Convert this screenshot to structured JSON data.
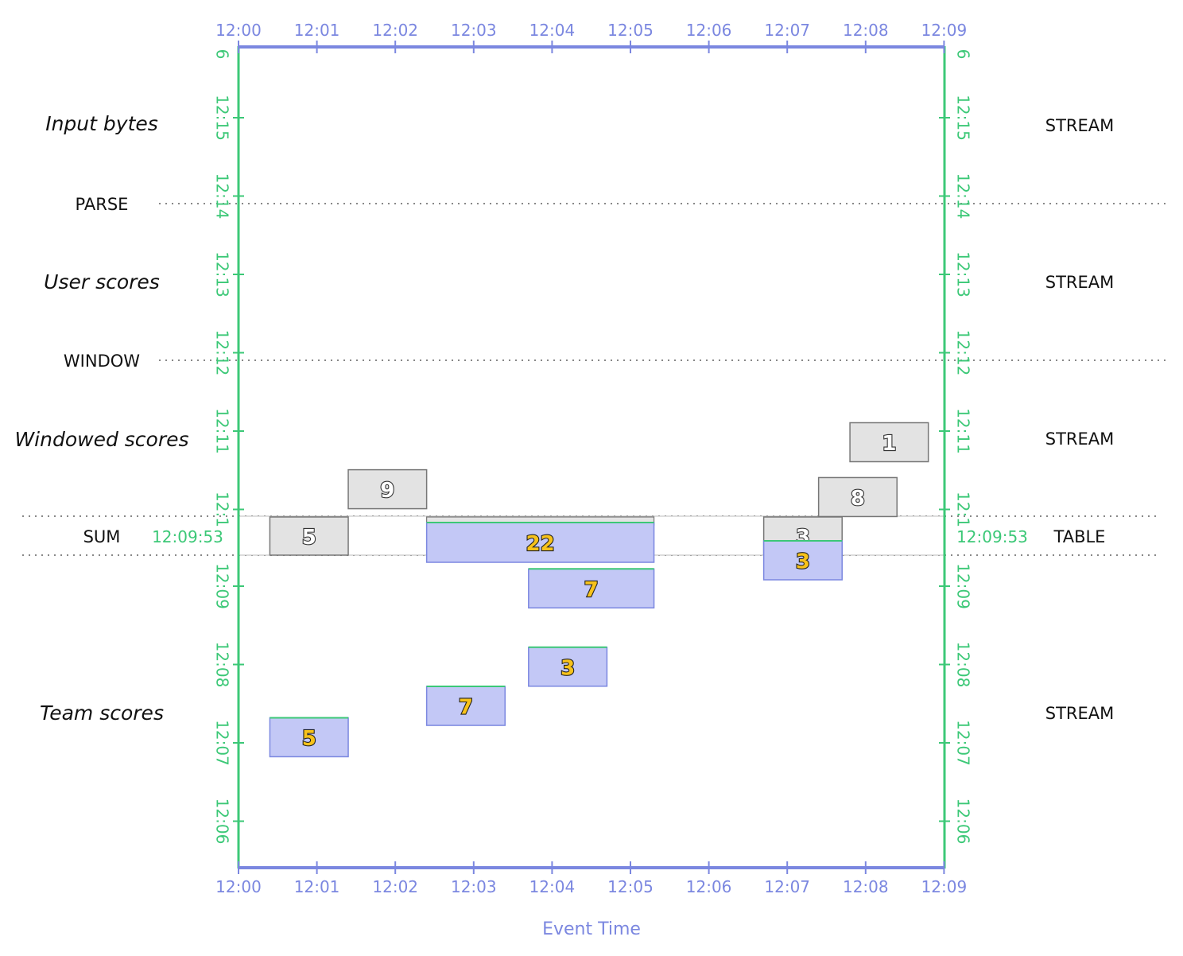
{
  "axis": {
    "x_label": "Event Time",
    "x_ticks": [
      "12:00",
      "12:01",
      "12:02",
      "12:03",
      "12:04",
      "12:05",
      "12:06",
      "12:07",
      "12:08",
      "12:09"
    ],
    "y_ticks_upper": [
      "12:15",
      "12:14",
      "12:13",
      "12:12",
      "12:11",
      "12:1"
    ],
    "y_top_partial": "6",
    "y_ticks_lower": [
      "12:09",
      "12:08",
      "12:07",
      "12:06"
    ]
  },
  "stages": {
    "input_bytes": "Input bytes",
    "parse": "PARSE",
    "user_scores": "User scores",
    "window": "WINDOW",
    "windowed_scores": "Windowed scores",
    "sum": "SUM",
    "team_scores": "Team scores"
  },
  "collection_kinds": {
    "input_bytes": "STREAM",
    "user_scores": "STREAM",
    "windowed_scores": "STREAM",
    "sum": "TABLE",
    "team_scores": "STREAM"
  },
  "watermark": "12:09:53",
  "colors": {
    "event_time_axis": "#7b87e0",
    "processing_time_axis": "#3cc877",
    "pending_box": "#e3e3e3",
    "result_box": "#c3c8f6",
    "value_gold": "#f7c21a"
  },
  "windowed_scores_pending": [
    {
      "value": "9",
      "window_start": "12:01.4",
      "window_end": "12:02.4",
      "processing_time": "12:10.4"
    },
    {
      "value": "1",
      "window_start": "12:07.8",
      "window_end": "12:08.8",
      "processing_time": "12:11.0"
    },
    {
      "value": "8",
      "window_start": "12:07.4",
      "window_end": "12:08.4",
      "processing_time": "12:10.3"
    }
  ],
  "table_state": [
    {
      "value": "5",
      "window_start": "12:00.4",
      "window_end": "12:01.4",
      "style": "pending"
    },
    {
      "value": "3",
      "window_start": "12:06.7",
      "window_end": "12:07.7",
      "style": "pending"
    }
  ],
  "table_results": [
    {
      "value": "22",
      "window_start": "12:02.4",
      "window_end": "12:05.3"
    },
    {
      "value": "3",
      "window_start": "12:06.7",
      "window_end": "12:07.7"
    }
  ],
  "team_scores_results": [
    {
      "value": "7",
      "window_start": "12:03.7",
      "window_end": "12:05.3",
      "processing_time": "12:09.2"
    },
    {
      "value": "3",
      "window_start": "12:03.7",
      "window_end": "12:04.7",
      "processing_time": "12:08.2"
    },
    {
      "value": "7",
      "window_start": "12:02.4",
      "window_end": "12:03.4",
      "processing_time": "12:07.7"
    },
    {
      "value": "5",
      "window_start": "12:00.4",
      "window_end": "12:01.4",
      "processing_time": "12:07.3"
    }
  ]
}
